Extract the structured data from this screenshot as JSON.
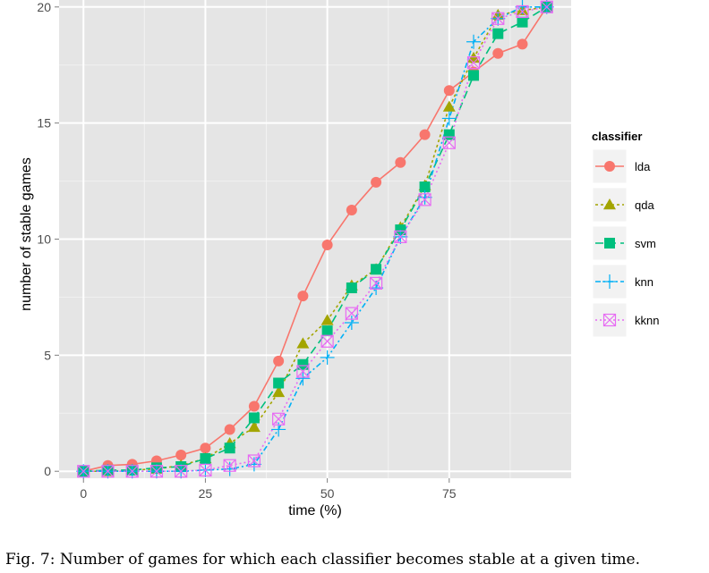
{
  "caption": "Fig. 7: Number of games for which each classifier becomes stable at a given time.",
  "chart_data": {
    "type": "line",
    "title": "",
    "xlabel": "time (%)",
    "ylabel": "number of stable games",
    "xlim": [
      -5,
      100
    ],
    "ylim": [
      -0.3,
      20.3
    ],
    "xticks": [
      0,
      25,
      50,
      75
    ],
    "yticks": [
      0,
      5,
      10,
      15,
      20
    ],
    "grid": true,
    "legend": {
      "title": "classifier",
      "position": "right"
    },
    "x": [
      0,
      5,
      10,
      15,
      20,
      25,
      30,
      35,
      40,
      45,
      50,
      55,
      60,
      65,
      70,
      75,
      80,
      85,
      90,
      95
    ],
    "series": [
      {
        "name": "lda",
        "color": "#F8766D",
        "marker": "circle",
        "dash": "",
        "values": [
          0.0,
          0.25,
          0.3,
          0.45,
          0.7,
          1.0,
          1.8,
          2.8,
          4.75,
          7.55,
          9.75,
          11.25,
          12.45,
          13.3,
          14.5,
          16.4,
          17.2,
          18.0,
          18.4,
          20.0
        ]
      },
      {
        "name": "qda",
        "color": "#A3A500",
        "marker": "triangle",
        "dash": "3,3",
        "values": [
          0.0,
          0.0,
          0.05,
          0.1,
          0.25,
          0.55,
          1.2,
          1.9,
          3.4,
          5.5,
          6.5,
          8.0,
          8.7,
          10.5,
          12.3,
          15.7,
          17.8,
          19.65,
          19.85,
          20.0
        ]
      },
      {
        "name": "svm",
        "color": "#00BF7D",
        "marker": "square",
        "dash": "9,5",
        "values": [
          0.0,
          0.05,
          0.05,
          0.15,
          0.2,
          0.55,
          1.0,
          2.3,
          3.8,
          4.6,
          6.05,
          7.9,
          8.7,
          10.4,
          12.25,
          14.5,
          17.05,
          18.85,
          19.35,
          20.0
        ]
      },
      {
        "name": "knn",
        "color": "#00B0F6",
        "marker": "plus",
        "dash": "6,3,2,3",
        "values": [
          0.0,
          0.0,
          0.0,
          0.0,
          0.0,
          0.05,
          0.1,
          0.3,
          1.8,
          4.0,
          4.9,
          6.4,
          7.9,
          10.1,
          11.8,
          15.2,
          18.5,
          19.5,
          20.0,
          20.0
        ]
      },
      {
        "name": "kknn",
        "color": "#E76BF3",
        "marker": "boxcross",
        "dash": "2,3",
        "values": [
          0.0,
          0.0,
          0.0,
          0.0,
          0.0,
          0.05,
          0.25,
          0.45,
          2.25,
          4.3,
          5.6,
          6.8,
          8.1,
          10.1,
          11.7,
          14.15,
          17.6,
          19.5,
          19.8,
          20.0
        ]
      }
    ]
  }
}
